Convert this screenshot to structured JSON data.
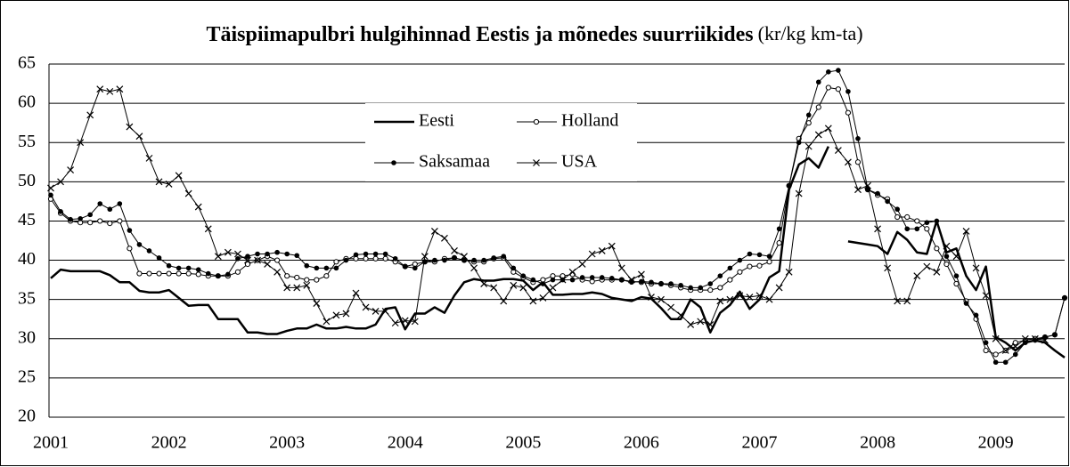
{
  "chart_data": {
    "type": "line",
    "title": "Täispiimapulbri hulgihinnad Eestis ja mõnedes suurriikides",
    "subtitle": "(kr/kg km-ta)",
    "categories": [
      "2001",
      null,
      null,
      null,
      null,
      null,
      null,
      null,
      null,
      null,
      null,
      null,
      "2002",
      null,
      null,
      null,
      null,
      null,
      null,
      null,
      null,
      null,
      null,
      null,
      "2003",
      null,
      null,
      null,
      null,
      null,
      null,
      null,
      null,
      null,
      null,
      null,
      "2004",
      null,
      null,
      null,
      null,
      null,
      null,
      null,
      null,
      null,
      null,
      null,
      "2005",
      null,
      null,
      null,
      null,
      null,
      null,
      null,
      null,
      null,
      null,
      null,
      "2006",
      null,
      null,
      null,
      null,
      null,
      null,
      null,
      null,
      null,
      null,
      null,
      "2007",
      null,
      null,
      null,
      null,
      null,
      null,
      null,
      null,
      null,
      null,
      null,
      "2008",
      null,
      null,
      null,
      null,
      null,
      null,
      null,
      null,
      null,
      null,
      null,
      "2009",
      null,
      null,
      null,
      null,
      null,
      null,
      null
    ],
    "ylim": [
      20,
      65
    ],
    "yticks": [
      20,
      25,
      30,
      35,
      40,
      45,
      50,
      55,
      60,
      65
    ],
    "grid": true,
    "series": [
      {
        "name": "Eesti",
        "color": "#000000",
        "marker": "none",
        "line_width": 2.5,
        "values": [
          37.7,
          38.8,
          38.6,
          38.6,
          38.6,
          38.6,
          38.1,
          37.2,
          37.2,
          36.1,
          35.9,
          35.9,
          36.2,
          35.2,
          34.2,
          34.3,
          34.3,
          32.5,
          32.5,
          32.5,
          30.8,
          30.8,
          30.6,
          30.6,
          31.0,
          31.3,
          31.3,
          31.8,
          31.3,
          31.3,
          31.5,
          31.3,
          31.3,
          31.8,
          33.8,
          34.0,
          31.2,
          33.2,
          33.2,
          34.0,
          33.3,
          35.5,
          37.2,
          37.6,
          37.4,
          37.4,
          37.6,
          37.6,
          37.4,
          36.2,
          37.2,
          35.6,
          35.6,
          35.7,
          35.7,
          35.9,
          35.7,
          35.2,
          35.0,
          34.8,
          35.3,
          35.1,
          33.9,
          32.5,
          32.5,
          35.0,
          34.0,
          30.8,
          33.3,
          34.3,
          36.0,
          33.8,
          35.0,
          37.8,
          38.6,
          49.0,
          52.2,
          53.0,
          51.8,
          54.5,
          null,
          42.4,
          42.2,
          42.0,
          41.8,
          40.8,
          43.6,
          42.6,
          41.0,
          40.8,
          45.0,
          41.0,
          41.5,
          38.0,
          36.2,
          39.2,
          30.2,
          29.5,
          28.5,
          29.5,
          29.8,
          29.5,
          28.5,
          27.6
        ]
      },
      {
        "name": "Holland",
        "color": "#000000",
        "marker": "circle-open",
        "line_width": 1,
        "values": [
          47.8,
          46.0,
          45.0,
          44.8,
          44.8,
          45.0,
          44.7,
          45.0,
          41.5,
          38.3,
          38.3,
          38.3,
          38.3,
          38.3,
          38.3,
          38.2,
          38.0,
          38.0,
          38.0,
          38.5,
          39.5,
          40.0,
          40.5,
          40.0,
          38.0,
          37.8,
          37.5,
          37.5,
          38.0,
          39.8,
          40.2,
          40.2,
          40.2,
          40.2,
          40.2,
          39.8,
          39.2,
          39.5,
          39.8,
          39.8,
          40.2,
          40.3,
          40.0,
          39.8,
          39.8,
          40.2,
          40.3,
          38.5,
          37.8,
          37.2,
          37.5,
          38.0,
          38.0,
          38.2,
          37.5,
          37.3,
          37.5,
          37.5,
          37.5,
          37.3,
          37.2,
          37.0,
          37.0,
          36.8,
          36.5,
          36.2,
          36.2,
          36.2,
          36.5,
          37.5,
          38.5,
          39.2,
          39.3,
          39.8,
          42.2,
          49.5,
          55.5,
          57.5,
          59.5,
          62.0,
          61.8,
          58.8,
          52.5,
          49.0,
          48.3,
          47.8,
          45.5,
          45.5,
          45.0,
          44.0,
          41.5,
          39.5,
          37.0,
          34.8,
          32.5,
          28.5,
          28.0,
          28.5,
          29.5,
          29.8,
          30.0,
          30.2,
          30.5,
          35.2
        ]
      },
      {
        "name": "Saksamaa",
        "color": "#000000",
        "marker": "circle",
        "line_width": 1,
        "values": [
          48.3,
          46.2,
          45.2,
          45.3,
          45.8,
          47.2,
          46.5,
          47.2,
          43.8,
          42.0,
          41.2,
          40.3,
          39.3,
          39.0,
          39.0,
          38.8,
          38.3,
          38.0,
          38.2,
          40.2,
          40.5,
          40.8,
          40.8,
          41.0,
          40.8,
          40.6,
          39.3,
          39.0,
          39.0,
          39.0,
          40.0,
          40.7,
          40.8,
          40.8,
          40.8,
          40.2,
          39.2,
          39.0,
          39.8,
          40.0,
          40.0,
          40.3,
          40.0,
          40.0,
          40.0,
          40.3,
          40.5,
          39.0,
          38.0,
          37.5,
          37.0,
          37.5,
          37.5,
          37.5,
          37.8,
          37.8,
          37.8,
          37.7,
          37.5,
          37.2,
          37.3,
          37.2,
          37.0,
          37.0,
          36.8,
          36.5,
          36.5,
          37.0,
          38.0,
          39.0,
          40.0,
          40.8,
          40.7,
          40.5,
          44.0,
          49.5,
          55.0,
          58.5,
          62.7,
          64.0,
          64.2,
          61.5,
          55.5,
          49.0,
          48.5,
          47.5,
          46.5,
          44.0,
          44.0,
          44.8,
          45.0,
          40.5,
          38.0,
          34.5,
          33.0,
          29.5,
          27.0,
          27.0,
          28.0,
          29.5,
          29.8,
          30.2,
          30.5,
          35.2
        ]
      },
      {
        "name": "USA",
        "color": "#000000",
        "marker": "x",
        "line_width": 1,
        "values": [
          49.2,
          50.0,
          51.5,
          55.0,
          58.5,
          61.8,
          61.5,
          61.8,
          57.0,
          55.8,
          53.0,
          50.0,
          49.7,
          50.8,
          48.5,
          46.8,
          44.0,
          40.5,
          41.0,
          40.8,
          40.0,
          40.0,
          39.5,
          38.5,
          36.5,
          36.5,
          36.8,
          34.5,
          32.2,
          33.0,
          33.2,
          35.8,
          34.0,
          33.5,
          33.5,
          32.0,
          32.3,
          32.2,
          40.5,
          43.7,
          42.8,
          41.2,
          40.5,
          39.0,
          37.0,
          36.5,
          34.8,
          36.8,
          36.5,
          34.8,
          35.2,
          36.5,
          37.5,
          38.5,
          39.5,
          40.8,
          41.2,
          41.8,
          39.0,
          37.5,
          38.2,
          35.3,
          35.0,
          34.0,
          33.0,
          31.8,
          32.2,
          31.8,
          34.8,
          35.0,
          35.5,
          35.3,
          35.5,
          35.0,
          36.5,
          38.5,
          48.5,
          54.5,
          56.0,
          56.8,
          54.0,
          52.5,
          49.0,
          49.5,
          44.0,
          39.0,
          34.8,
          34.8,
          38.0,
          39.2,
          38.5,
          41.8,
          40.5,
          43.7,
          39.0,
          35.5,
          30.0,
          28.5,
          29.0,
          30.0,
          30.0,
          29.8,
          null,
          null
        ]
      }
    ]
  }
}
